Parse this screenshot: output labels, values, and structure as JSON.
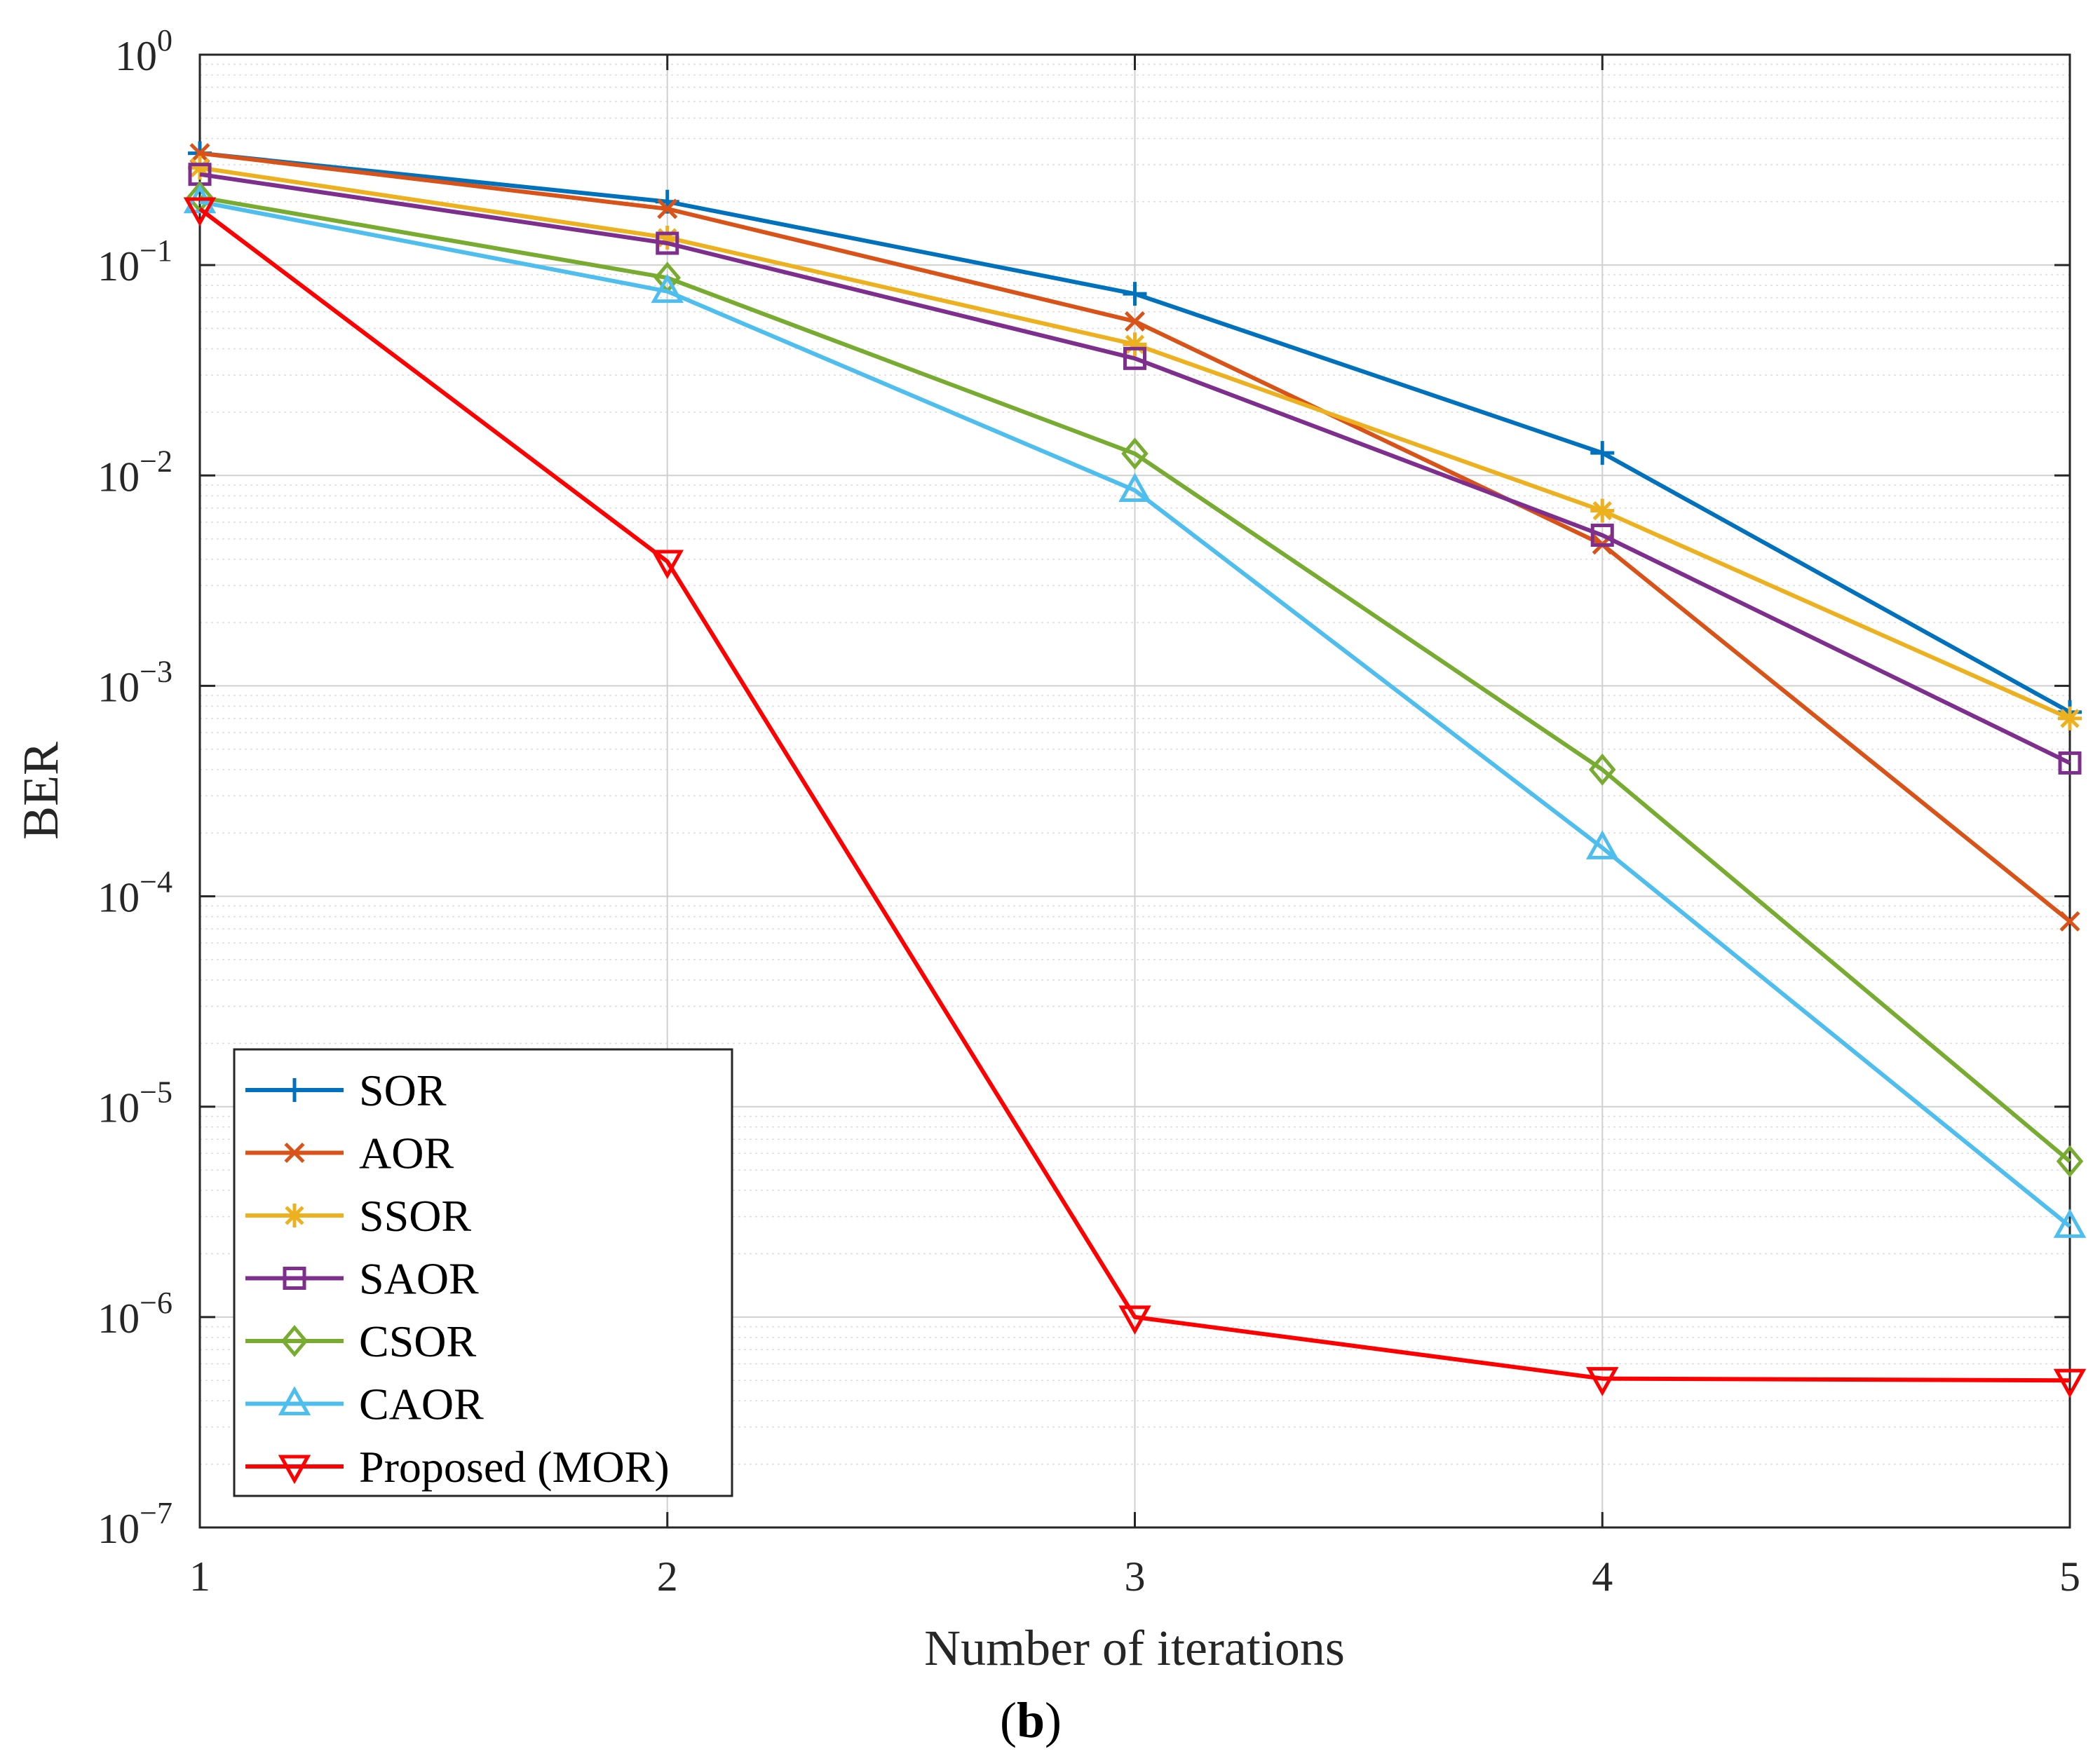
{
  "chart_data": {
    "type": "line",
    "title": "",
    "xlabel": "Number of iterations",
    "ylabel": "BER",
    "caption": {
      "open": "(",
      "letter": "b",
      "close": ")"
    },
    "x": [
      1,
      2,
      3,
      4,
      5
    ],
    "x_tick_labels": [
      "1",
      "2",
      "3",
      "4",
      "5"
    ],
    "xlim": [
      1,
      5
    ],
    "yscale": "log",
    "ylim": [
      1e-07,
      1
    ],
    "y_ticks": [
      {
        "base": "10",
        "exp": "0"
      },
      {
        "base": "10",
        "exp": "−1"
      },
      {
        "base": "10",
        "exp": "−2"
      },
      {
        "base": "10",
        "exp": "−3"
      },
      {
        "base": "10",
        "exp": "−4"
      },
      {
        "base": "10",
        "exp": "−5"
      },
      {
        "base": "10",
        "exp": "−6"
      },
      {
        "base": "10",
        "exp": "−7"
      }
    ],
    "grid": true,
    "legend_position": "bottom-left",
    "series": [
      {
        "name": "SOR",
        "color": "#0072BD",
        "marker": "plus",
        "values": [
          0.34,
          0.2,
          0.073,
          0.0128,
          0.00075
        ]
      },
      {
        "name": "AOR",
        "color": "#D95319",
        "marker": "x",
        "values": [
          0.34,
          0.185,
          0.054,
          0.0047,
          7.6e-05
        ]
      },
      {
        "name": "SSOR",
        "color": "#EDB120",
        "marker": "asterisk",
        "values": [
          0.29,
          0.135,
          0.042,
          0.0068,
          0.0007
        ]
      },
      {
        "name": "SAOR",
        "color": "#7E2F8E",
        "marker": "square",
        "values": [
          0.27,
          0.127,
          0.036,
          0.0052,
          0.00043
        ]
      },
      {
        "name": "CSOR",
        "color": "#77AC30",
        "marker": "diamond",
        "values": [
          0.21,
          0.087,
          0.0127,
          0.0004,
          5.5e-06
        ]
      },
      {
        "name": "CAOR",
        "color": "#4DBEEE",
        "marker": "triangle-up",
        "values": [
          0.2,
          0.075,
          0.0085,
          0.00017,
          2.7e-06
        ]
      },
      {
        "name": "Proposed (MOR)",
        "color": "#FF0000",
        "marker": "triangle-down",
        "values": [
          0.185,
          0.0039,
          1e-06,
          5.1e-07,
          5e-07
        ]
      }
    ]
  }
}
